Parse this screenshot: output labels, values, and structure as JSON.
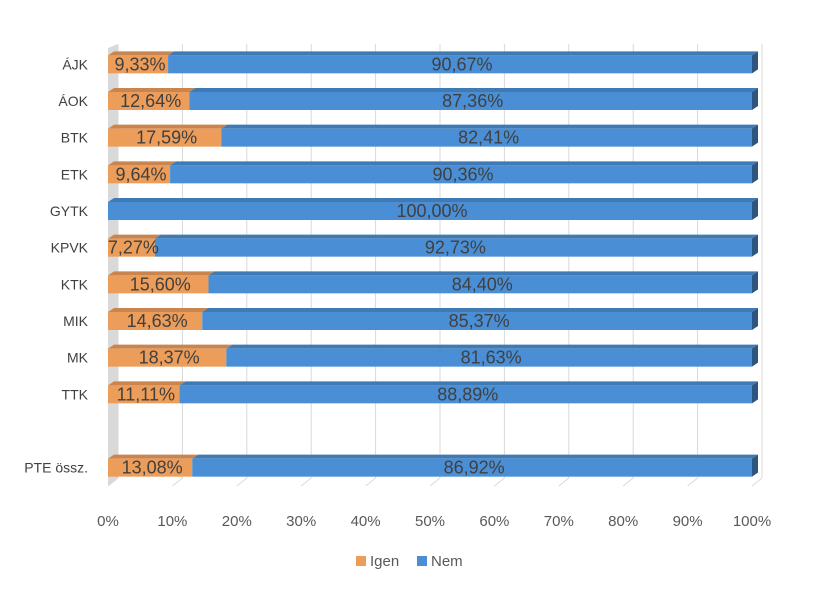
{
  "chart_data": {
    "type": "bar",
    "orientation": "horizontal",
    "stacked": true,
    "percent_stacked": true,
    "style": "3d",
    "categories": [
      "ÁJK",
      "ÁOK",
      "BTK",
      "ETK",
      "GYTK",
      "KPVK",
      "KTK",
      "MIK",
      "MK",
      "TTK",
      "",
      "PTE össz."
    ],
    "series": [
      {
        "name": "Igen",
        "color": "#ED9D5A",
        "values": [
          9.33,
          12.64,
          17.59,
          9.64,
          0,
          7.27,
          15.6,
          14.63,
          18.37,
          11.11,
          null,
          13.08
        ],
        "labels": [
          "9,33%",
          "12,64%",
          "17,59%",
          "9,64%",
          "",
          "7,27%",
          "15,60%",
          "14,63%",
          "18,37%",
          "11,11%",
          "",
          "13,08%"
        ]
      },
      {
        "name": "Nem",
        "color": "#4A8FD5",
        "values": [
          90.67,
          87.36,
          82.41,
          90.36,
          100.0,
          92.73,
          84.4,
          85.37,
          81.63,
          88.89,
          null,
          86.92
        ],
        "labels": [
          "90,67%",
          "87,36%",
          "82,41%",
          "90,36%",
          "100,00%",
          "92,73%",
          "84,40%",
          "85,37%",
          "81,63%",
          "88,89%",
          "",
          "86,92%"
        ]
      }
    ],
    "xlim": [
      0,
      100
    ],
    "x_ticks": [
      "0%",
      "10%",
      "20%",
      "30%",
      "40%",
      "50%",
      "60%",
      "70%",
      "80%",
      "90%",
      "100%"
    ],
    "grid": true,
    "legend": "bottom"
  }
}
